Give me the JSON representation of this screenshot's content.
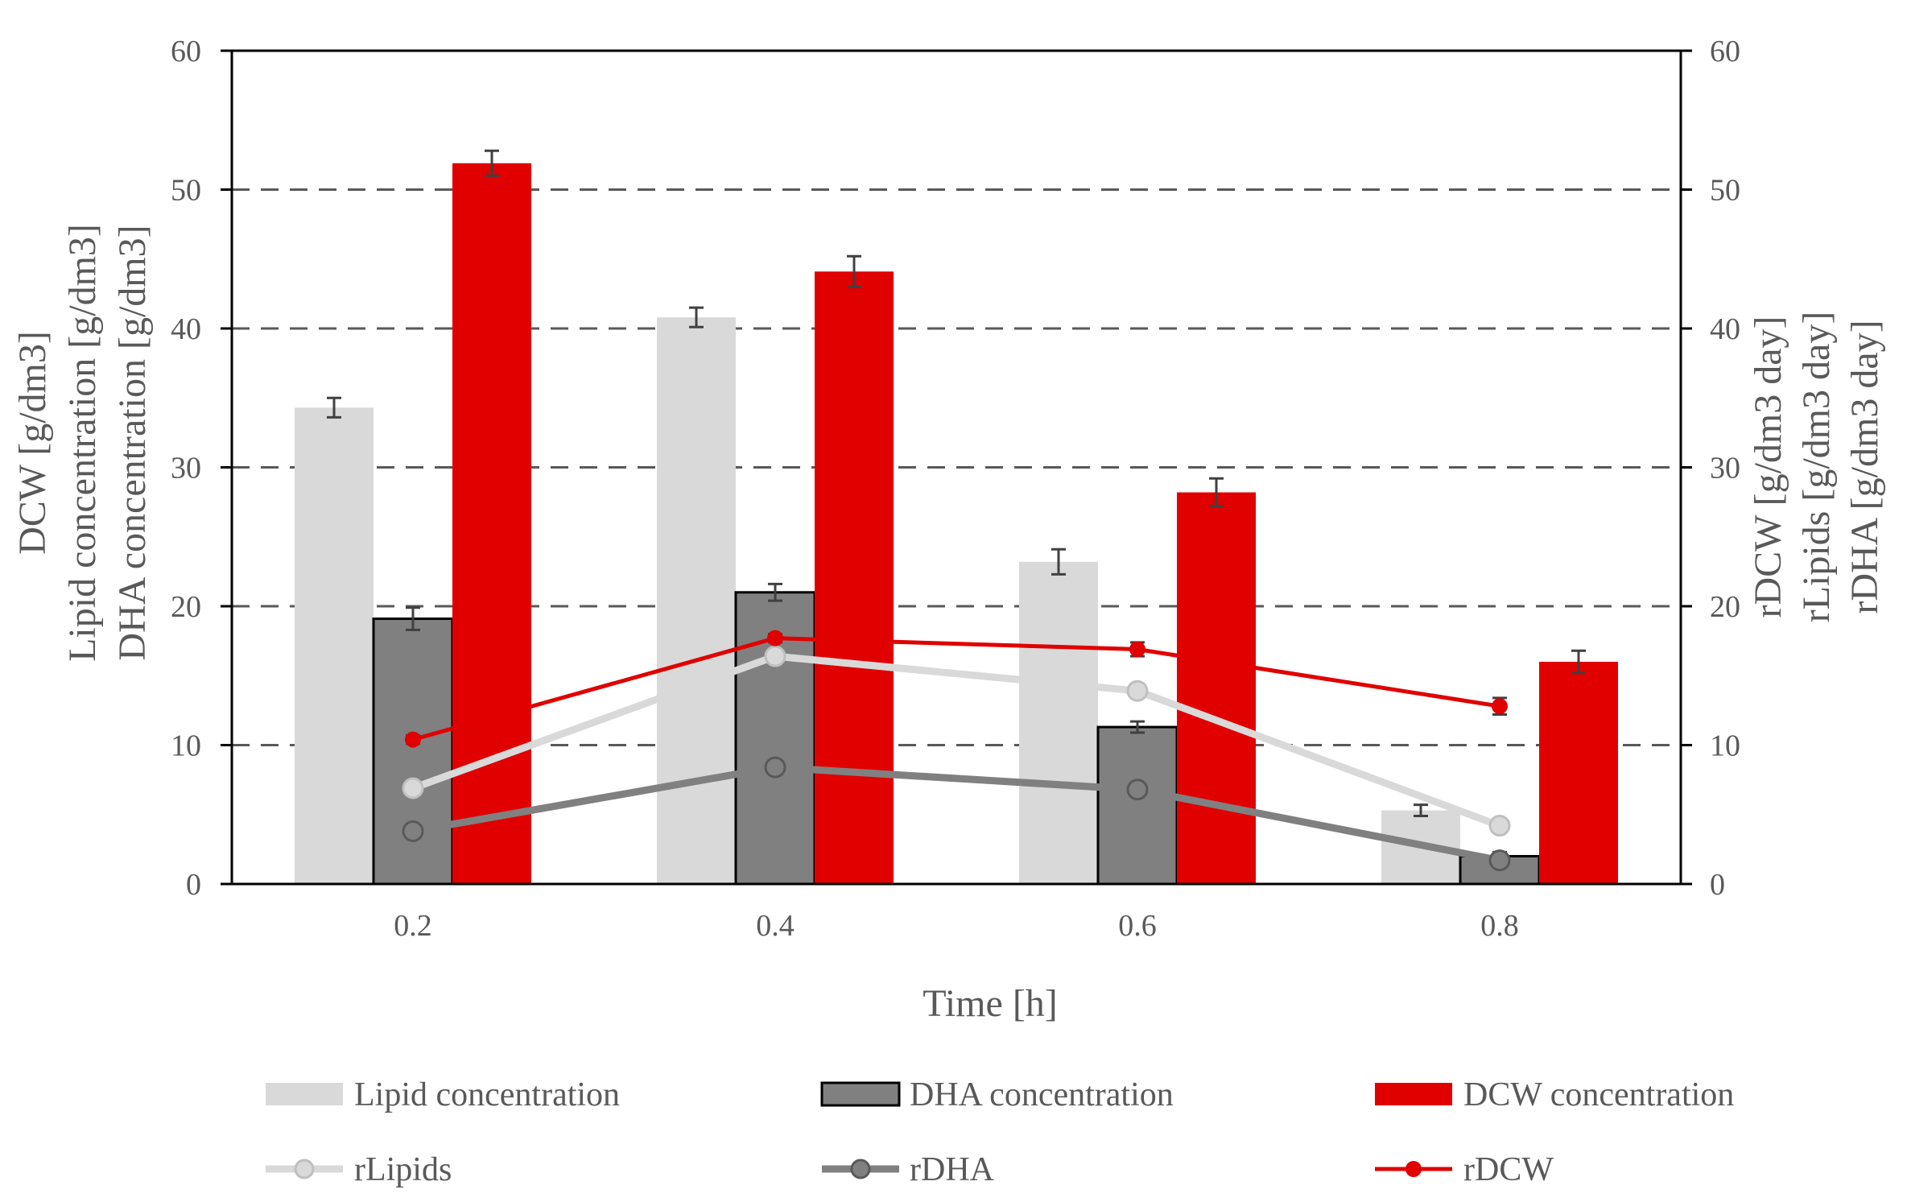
{
  "chart_data": {
    "type": "bar",
    "title": "",
    "xlabel": "Time [h]",
    "ylabel_left": [
      "DCW [g/dm3]",
      "Lipid concentration [g/dm3]",
      "DHA concentration [g/dm3]"
    ],
    "ylabel_right": [
      "rDCW [g/dm3 day]",
      "rLipids [g/dm3 day]",
      "rDHA [g/dm3 day]"
    ],
    "categories": [
      "0.2",
      "0.4",
      "0.6",
      "0.8"
    ],
    "ylim_left": [
      0,
      60
    ],
    "ylim_right": [
      0,
      60
    ],
    "yticks_left": [
      "0",
      "10",
      "20",
      "30",
      "40",
      "50",
      "60"
    ],
    "yticks_right": [
      "0",
      "10",
      "20",
      "30",
      "40",
      "50",
      "60"
    ],
    "grid": "horizontal dashed",
    "legend_position": "bottom",
    "bar_series": [
      {
        "name": "Lipid concentration",
        "color": "#d9d9d9",
        "values": [
          34.3,
          40.8,
          23.2,
          5.3
        ],
        "errors": [
          0.7,
          0.7,
          0.9,
          0.4
        ],
        "outline": false
      },
      {
        "name": "DHA concentration",
        "color": "#808080",
        "values": [
          19.1,
          21.0,
          11.3,
          2.0
        ],
        "errors": [
          0.8,
          0.6,
          0.4,
          0.3
        ],
        "outline": true
      },
      {
        "name": "DCW concentration",
        "color": "#e00000",
        "values": [
          51.9,
          44.1,
          28.2,
          16.0
        ],
        "errors": [
          0.9,
          1.1,
          1.0,
          0.8
        ],
        "outline": false
      }
    ],
    "line_series": [
      {
        "name": "rLipids",
        "color": "#d9d9d9",
        "marker": "hollow-circle",
        "values": [
          6.9,
          16.4,
          13.9,
          4.2
        ]
      },
      {
        "name": "rDHA",
        "color": "#808080",
        "marker": "hollow-circle",
        "values": [
          3.8,
          8.4,
          6.8,
          1.7
        ]
      },
      {
        "name": "rDCW",
        "color": "#e00000",
        "marker": "filled-circle",
        "values": [
          10.4,
          17.7,
          16.9,
          12.8
        ],
        "errors": [
          0.3,
          0.3,
          0.5,
          0.6
        ]
      }
    ],
    "legend": [
      "Lipid concentration",
      "DHA concentration",
      "DCW concentration",
      "rLipids",
      "rDHA",
      "rDCW"
    ]
  }
}
